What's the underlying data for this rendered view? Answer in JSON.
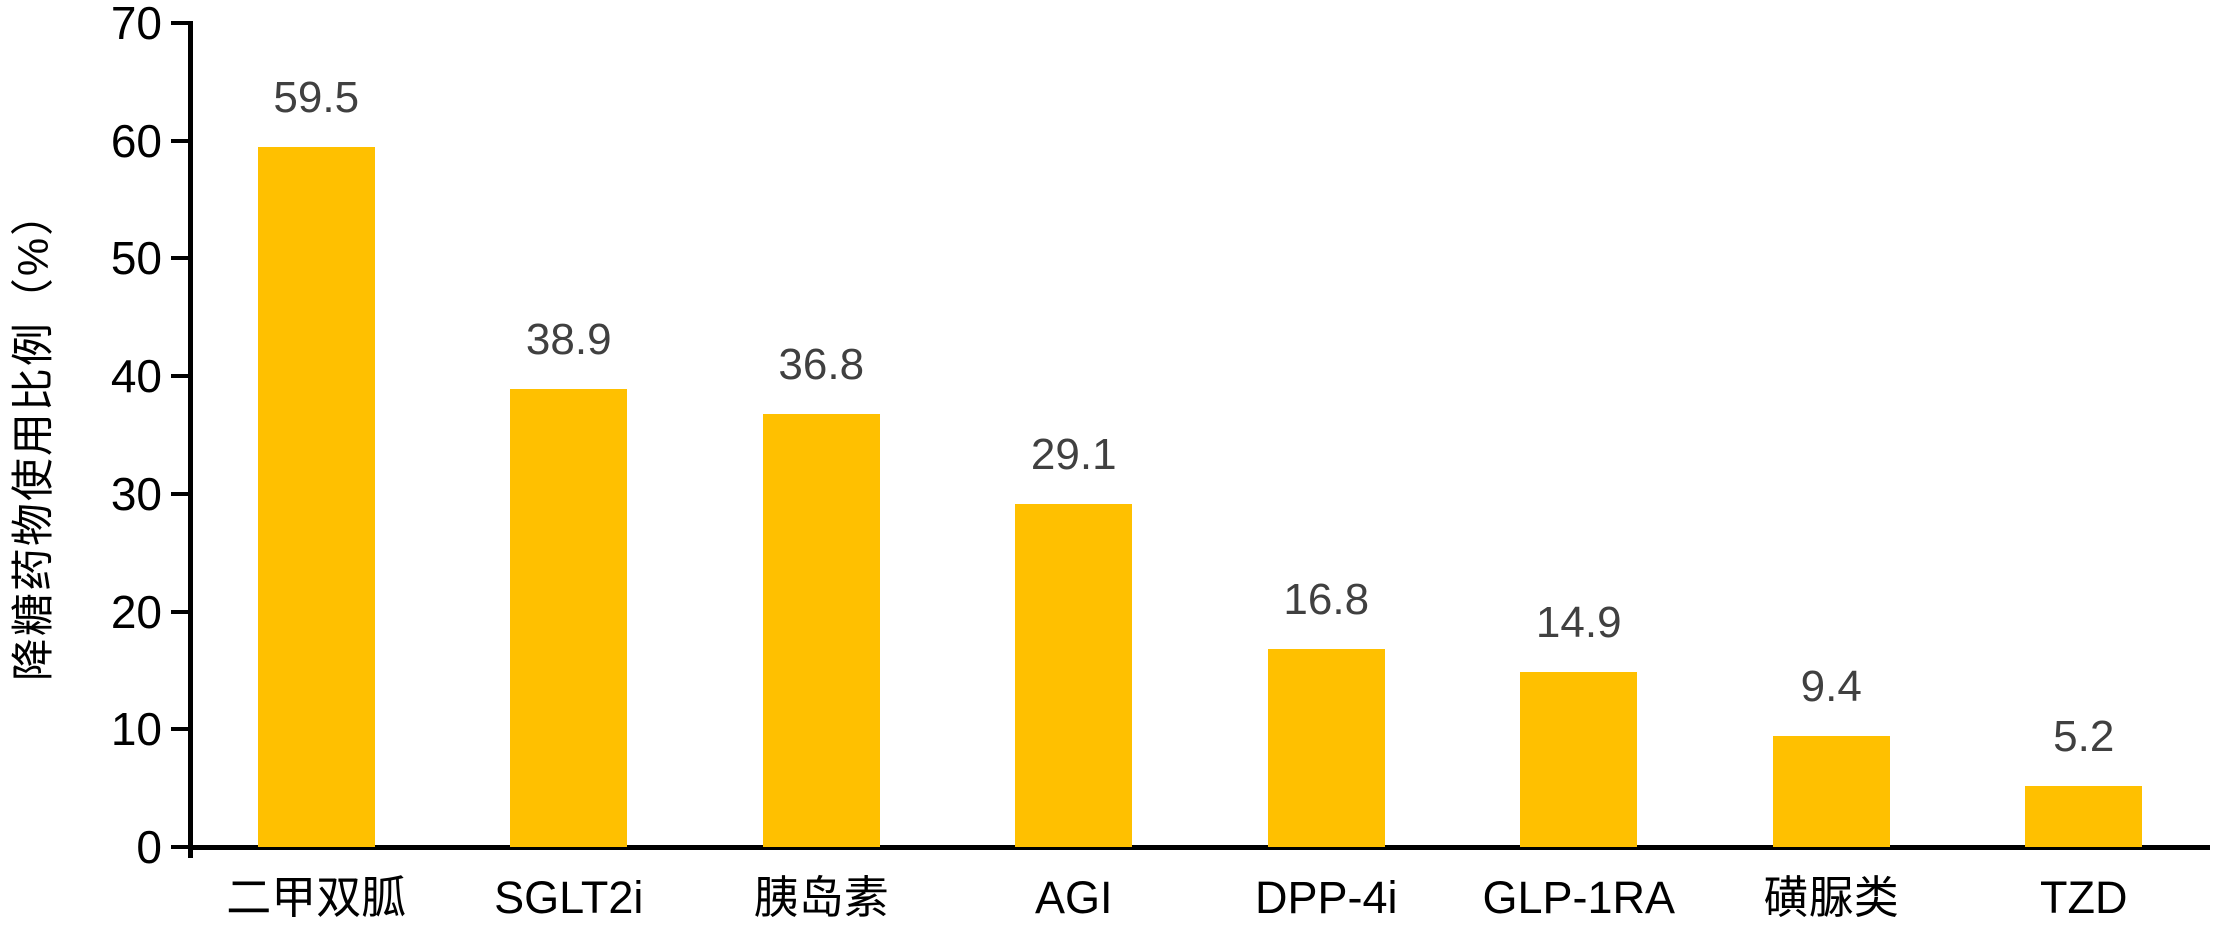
{
  "chart_data": {
    "type": "bar",
    "categories": [
      "二甲双胍",
      "SGLT2i",
      "胰岛素",
      "AGI",
      "DPP-4i",
      "GLP-1RA",
      "磺脲类",
      "TZD"
    ],
    "values": [
      59.5,
      38.9,
      36.8,
      29.1,
      16.8,
      14.9,
      9.4,
      5.2
    ],
    "value_labels": [
      "59.5",
      "38.9",
      "36.8",
      "29.1",
      "16.8",
      "14.9",
      "9.4",
      "5.2"
    ],
    "title": "",
    "xlabel": "",
    "ylabel": "降糖药物使用比例（%）",
    "ylim": [
      0,
      70
    ],
    "yticks": [
      0,
      10,
      20,
      30,
      40,
      50,
      60,
      70
    ],
    "grid": false,
    "legend": false,
    "bar_color": "#FFC000",
    "value_label_color": "#404040",
    "axis_color": "#000000",
    "tick_label_color": "#000000",
    "background_color": "#FFFFFF"
  }
}
